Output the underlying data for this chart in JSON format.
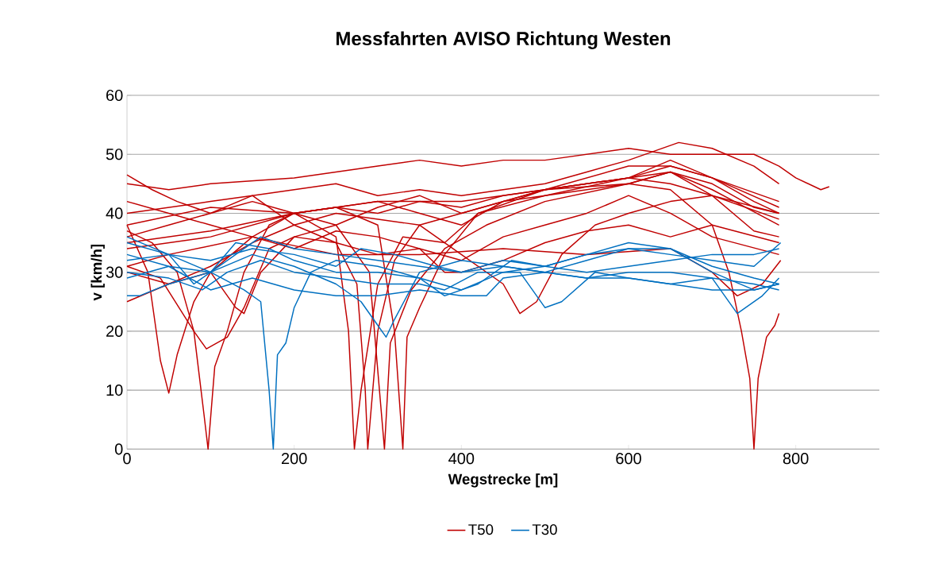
{
  "chart_data": {
    "type": "line",
    "title": "Messfahrten AVISO Richtung Westen",
    "xlabel": "Wegstrecke  [m]",
    "ylabel": "v [km/h]",
    "xlim": [
      0,
      900
    ],
    "xticks": [
      0,
      200,
      400,
      600,
      800
    ],
    "ylim": [
      0,
      60
    ],
    "yticks": [
      0,
      10,
      20,
      30,
      40,
      50,
      60
    ],
    "grid": "y",
    "legend": "bottom",
    "line_style": "solid",
    "marker": "none",
    "series": [
      {
        "name": "T50",
        "color": "#c00000",
        "x": [
          0,
          50,
          100,
          200,
          250,
          300,
          350,
          400,
          450,
          500,
          550,
          600,
          650,
          700,
          750,
          780,
          800,
          830,
          840
        ],
        "values": [
          45,
          44,
          45,
          46,
          47,
          48,
          49,
          48,
          49,
          49,
          50,
          51,
          50,
          50,
          50,
          48,
          46,
          44,
          44.5
        ]
      },
      {
        "color": "#c00000",
        "x": [
          0,
          30,
          60,
          80,
          92,
          97,
          105,
          120,
          140,
          170,
          200,
          250,
          300,
          350,
          400,
          450,
          500,
          550,
          600,
          650,
          700,
          750,
          780
        ],
        "values": [
          37,
          35,
          30,
          20,
          6,
          0,
          14,
          20,
          30,
          38,
          40,
          41,
          42,
          40,
          38,
          42,
          44,
          45,
          46,
          47,
          45,
          41,
          40
        ]
      },
      {
        "color": "#c00000",
        "x": [
          0,
          25,
          40,
          50,
          60,
          80,
          100,
          150,
          200,
          250,
          300,
          350,
          400,
          450,
          500,
          550,
          600,
          650,
          700,
          750,
          780
        ],
        "values": [
          38,
          30,
          15,
          9.5,
          16,
          25,
          30,
          36,
          40,
          41,
          40,
          42,
          41,
          43,
          44,
          46,
          48,
          48,
          46,
          42,
          40
        ]
      },
      {
        "color": "#c00000",
        "x": [
          0,
          50,
          100,
          150,
          200,
          250,
          265,
          272,
          280,
          300,
          330,
          380,
          420,
          500,
          600,
          650,
          700,
          780
        ],
        "values": [
          36,
          38,
          40,
          42,
          40,
          36,
          20,
          0,
          10,
          28,
          36,
          35,
          40,
          43,
          46,
          45,
          43,
          40
        ]
      },
      {
        "color": "#c00000",
        "x": [
          0,
          100,
          150,
          200,
          250,
          275,
          285,
          288,
          300,
          320,
          350,
          400,
          500,
          600,
          650,
          700,
          780
        ],
        "values": [
          40,
          42,
          43,
          38,
          35,
          28,
          10,
          0,
          20,
          32,
          38,
          40,
          44,
          46,
          48,
          46,
          42
        ]
      },
      {
        "color": "#c00000",
        "x": [
          0,
          100,
          200,
          250,
          290,
          308,
          315,
          340,
          380,
          430,
          500,
          600,
          650,
          700,
          780
        ],
        "values": [
          35,
          37,
          40,
          38,
          30,
          0,
          18,
          27,
          34,
          38,
          42,
          45,
          47,
          44,
          38
        ]
      },
      {
        "color": "#c00000",
        "x": [
          0,
          100,
          200,
          250,
          300,
          320,
          330,
          335,
          350,
          380,
          420,
          500,
          600,
          650,
          700,
          780
        ],
        "values": [
          38,
          41,
          40,
          41,
          38,
          20,
          0,
          19,
          24,
          33,
          40,
          44,
          46,
          49,
          46,
          41
        ]
      },
      {
        "color": "#c00000",
        "x": [
          0,
          100,
          200,
          300,
          400,
          500,
          600,
          650,
          700,
          720,
          735,
          745,
          750,
          755,
          765,
          775,
          780
        ],
        "values": [
          34,
          36,
          40,
          42,
          42,
          44,
          45,
          44,
          38,
          30,
          20,
          12,
          0,
          12,
          19,
          21,
          23
        ]
      },
      {
        "color": "#c00000",
        "x": [
          0,
          50,
          150,
          250,
          350,
          450,
          550,
          650,
          700,
          730,
          760,
          782
        ],
        "values": [
          31,
          33,
          36,
          33,
          33,
          34,
          33,
          34,
          30,
          26,
          28,
          32
        ]
      },
      {
        "color": "#c00000",
        "x": [
          0,
          40,
          80,
          95,
          120,
          140,
          170,
          200,
          250,
          300,
          350,
          380,
          400,
          450,
          500,
          550,
          600,
          650,
          700,
          780
        ],
        "values": [
          31,
          29,
          20,
          17,
          19,
          24,
          34,
          36,
          35,
          33,
          34,
          30,
          30,
          32,
          35,
          37,
          38,
          36,
          38,
          35
        ]
      },
      {
        "color": "#c00000",
        "x": [
          0,
          50,
          100,
          150,
          200,
          250,
          300,
          350,
          400,
          450,
          470,
          490,
          520,
          560,
          600,
          650,
          700,
          780
        ],
        "values": [
          30,
          28,
          31,
          35,
          38,
          40,
          39,
          38,
          33,
          28,
          23,
          25,
          33,
          38,
          40,
          42,
          43,
          39
        ]
      },
      {
        "color": "#c00000",
        "x": [
          0,
          30,
          60,
          100,
          150,
          200,
          250,
          300,
          350,
          400,
          450,
          500,
          550,
          600,
          660,
          700,
          750,
          780
        ],
        "values": [
          46.5,
          44,
          42,
          40,
          43,
          44,
          45,
          43,
          44,
          43,
          44,
          45,
          47,
          49,
          52,
          51,
          48,
          45
        ]
      },
      {
        "color": "#c00000",
        "x": [
          0,
          50,
          100,
          130,
          140,
          160,
          200,
          250,
          300,
          350,
          400,
          450,
          500,
          600,
          650,
          700,
          750,
          780
        ],
        "values": [
          25,
          28,
          30,
          24,
          23,
          30,
          36,
          38,
          41,
          43,
          40,
          42,
          43,
          45,
          47,
          43,
          37,
          36
        ]
      },
      {
        "color": "#c00000",
        "x": [
          0,
          50,
          100,
          150,
          200,
          250,
          300,
          350,
          400,
          450,
          500,
          550,
          600,
          650,
          700,
          780
        ],
        "values": [
          42,
          40,
          38,
          36,
          34,
          37,
          36,
          34,
          32,
          36,
          38,
          40,
          43,
          40,
          36,
          33
        ]
      },
      {
        "name": "T30",
        "color": "#0070c0",
        "x": [
          0,
          50,
          100,
          140,
          160,
          170,
          175,
          180,
          190,
          200,
          220,
          250,
          300,
          350,
          400,
          450,
          500,
          550,
          600,
          650,
          700,
          750,
          780
        ],
        "values": [
          33,
          31,
          30,
          27,
          25,
          10,
          0,
          16,
          18,
          24,
          30,
          32,
          31,
          29,
          27,
          30,
          31,
          33,
          34,
          34,
          31,
          29,
          28
        ]
      },
      {
        "color": "#0070c0",
        "x": [
          0,
          50,
          100,
          150,
          200,
          250,
          280,
          300,
          310,
          320,
          350,
          400,
          450,
          500,
          550,
          600,
          650,
          700,
          730,
          760,
          780
        ],
        "values": [
          35,
          33,
          30,
          33,
          31,
          28,
          25,
          21,
          19,
          22,
          30,
          32,
          31,
          30,
          29,
          30,
          30,
          29,
          23,
          26,
          29
        ]
      },
      {
        "color": "#0070c0",
        "x": [
          0,
          15,
          50,
          100,
          130,
          160,
          200,
          250,
          300,
          350,
          400,
          450,
          500,
          550,
          600,
          650,
          700,
          750,
          782
        ],
        "values": [
          26,
          26,
          28,
          30,
          33,
          36,
          34,
          33,
          32,
          31,
          30,
          31,
          30,
          32,
          34,
          33,
          32,
          31,
          35
        ]
      },
      {
        "color": "#0070c0",
        "x": [
          0,
          50,
          80,
          100,
          130,
          170,
          200,
          250,
          300,
          350,
          380,
          420,
          460,
          500,
          550,
          600,
          650,
          700,
          750,
          780
        ],
        "values": [
          36,
          33,
          28,
          30,
          35,
          34,
          32,
          30,
          30,
          29,
          26,
          28,
          32,
          31,
          33,
          35,
          34,
          30,
          27,
          28
        ]
      },
      {
        "color": "#0070c0",
        "x": [
          0,
          50,
          90,
          120,
          160,
          200,
          250,
          300,
          350,
          380,
          420,
          470,
          500,
          520,
          560,
          600,
          650,
          700,
          750,
          780
        ],
        "values": [
          30,
          29,
          27,
          30,
          32,
          30,
          29,
          28,
          28,
          27,
          30,
          30,
          24,
          25,
          30,
          29,
          28,
          27,
          27,
          28
        ]
      },
      {
        "color": "#0070c0",
        "x": [
          0,
          50,
          100,
          150,
          200,
          250,
          280,
          320,
          370,
          400,
          450,
          500,
          550,
          600,
          650,
          700,
          750,
          780
        ],
        "values": [
          32,
          33,
          32,
          34,
          33,
          31,
          34,
          33,
          31,
          30,
          32,
          31,
          30,
          31,
          32,
          33,
          33,
          34
        ]
      },
      {
        "color": "#0070c0",
        "x": [
          0,
          50,
          100,
          150,
          200,
          250,
          300,
          350,
          400,
          430,
          450,
          500,
          550,
          600,
          650,
          700,
          750,
          780
        ],
        "values": [
          29,
          31,
          27,
          29,
          27,
          26,
          26,
          27,
          26,
          26,
          29,
          30,
          29,
          29,
          28,
          29,
          28,
          27
        ]
      }
    ]
  }
}
